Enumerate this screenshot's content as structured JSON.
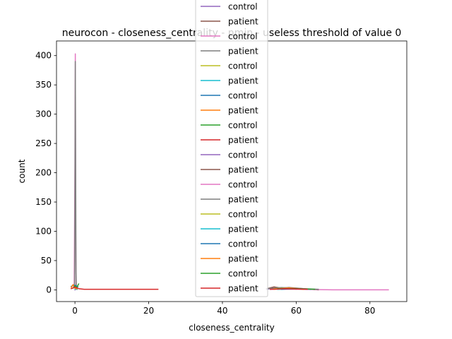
{
  "chart_data": {
    "type": "line",
    "title": "neurocon - closeness_centrality - nmin - useless threshold of value 0",
    "xlabel": "closeness_centrality",
    "ylabel": "count",
    "xlim": [
      -5,
      90
    ],
    "ylim": [
      -20,
      425
    ],
    "x_ticks": [
      0,
      20,
      40,
      60,
      80
    ],
    "x_tick_labels": [
      "0",
      "20",
      "40",
      "60",
      "80"
    ],
    "y_ticks": [
      0,
      50,
      100,
      150,
      200,
      250,
      300,
      350,
      400
    ],
    "y_tick_labels": [
      "0",
      "50",
      "100",
      "150",
      "200",
      "250",
      "300",
      "350",
      "400"
    ],
    "grid": false,
    "legend_position": "top-center",
    "series": [
      {
        "name": "control",
        "color": "#9467bd",
        "x": [
          0.0,
          0.2,
          0.4,
          0.6
        ],
        "y": [
          0,
          2,
          5,
          1
        ]
      },
      {
        "name": "patient",
        "color": "#8c564b",
        "x": [
          53,
          55,
          57,
          59,
          61,
          63
        ],
        "y": [
          1,
          4,
          2,
          3,
          2,
          1
        ]
      },
      {
        "name": "control",
        "color": "#e377c2",
        "x": [
          -0.2,
          0.0,
          0.1,
          0.2,
          0.3,
          0.5
        ],
        "y": [
          5,
          220,
          403,
          120,
          8,
          1
        ]
      },
      {
        "name": "patient",
        "color": "#7f7f7f",
        "x": [
          -0.1,
          0.0,
          0.1,
          0.2,
          0.3,
          0.4
        ],
        "y": [
          3,
          150,
          390,
          200,
          30,
          2
        ]
      },
      {
        "name": "control",
        "color": "#bcbd22",
        "x": [
          0.1,
          0.3,
          0.5
        ],
        "y": [
          2,
          6,
          1
        ]
      },
      {
        "name": "patient",
        "color": "#17becf",
        "x": [
          0.2,
          0.4,
          0.6
        ],
        "y": [
          1,
          4,
          1
        ]
      },
      {
        "name": "control",
        "color": "#1f77b4",
        "x": [
          -1.0,
          0.0,
          0.8
        ],
        "y": [
          6,
          8,
          5
        ]
      },
      {
        "name": "patient",
        "color": "#ff7f0e",
        "x": [
          -1.0,
          -0.5,
          0.0,
          0.5
        ],
        "y": [
          4,
          9,
          3,
          2
        ]
      },
      {
        "name": "control",
        "color": "#2ca02c",
        "x": [
          -0.5,
          0.0,
          0.5,
          1.0
        ],
        "y": [
          3,
          7,
          4,
          10
        ]
      },
      {
        "name": "patient",
        "color": "#d62728",
        "x": [
          -1.0,
          0.0,
          1.0,
          2.5,
          22.5
        ],
        "y": [
          2,
          5,
          2,
          1,
          1
        ]
      },
      {
        "name": "control",
        "color": "#9467bd",
        "x": [
          52,
          54,
          56,
          58,
          60
        ],
        "y": [
          1,
          3,
          2,
          3,
          1
        ]
      },
      {
        "name": "patient",
        "color": "#8c564b",
        "x": [
          52,
          54,
          56,
          58,
          60,
          62,
          64,
          66
        ],
        "y": [
          2,
          5,
          3,
          4,
          3,
          2,
          1,
          0
        ]
      },
      {
        "name": "control",
        "color": "#e377c2",
        "x": [
          53,
          60,
          70,
          78,
          85
        ],
        "y": [
          1,
          1,
          0,
          0,
          0
        ]
      },
      {
        "name": "patient",
        "color": "#7f7f7f",
        "x": [
          52,
          56,
          62,
          66
        ],
        "y": [
          2,
          4,
          2,
          1
        ]
      },
      {
        "name": "control",
        "color": "#bcbd22",
        "x": [
          54,
          58,
          62
        ],
        "y": [
          2,
          3,
          1
        ]
      },
      {
        "name": "patient",
        "color": "#17becf",
        "x": [
          55,
          60
        ],
        "y": [
          1,
          2
        ]
      },
      {
        "name": "control",
        "color": "#1f77b4",
        "x": [
          56,
          60,
          64
        ],
        "y": [
          1,
          2,
          1
        ]
      },
      {
        "name": "patient",
        "color": "#ff7f0e",
        "x": [
          54,
          58,
          62
        ],
        "y": [
          1,
          3,
          1
        ]
      },
      {
        "name": "control",
        "color": "#2ca02c",
        "x": [
          55,
          60,
          65
        ],
        "y": [
          2,
          2,
          1
        ]
      },
      {
        "name": "patient",
        "color": "#d62728",
        "x": [
          53,
          57,
          63
        ],
        "y": [
          1,
          2,
          1
        ]
      }
    ]
  }
}
